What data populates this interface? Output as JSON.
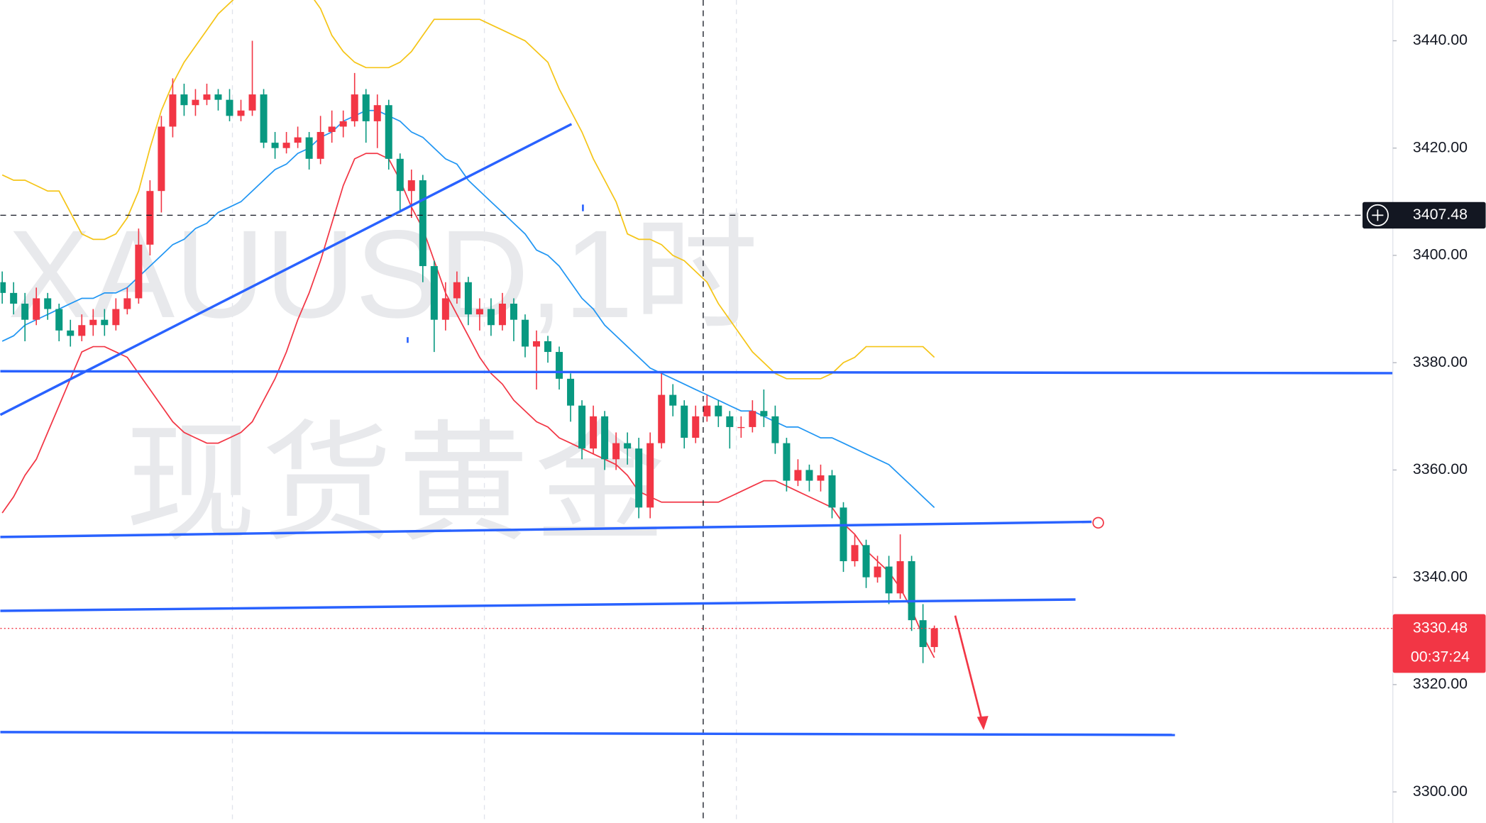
{
  "chart_data": {
    "type": "candlestick",
    "watermark": [
      "XAUUSD,1时",
      "现货黄金"
    ],
    "up_color": "#f23645",
    "down_color": "#089981",
    "open": [
      3395,
      3393,
      3391,
      3388,
      3392,
      3390,
      3386,
      3385,
      3387,
      3388,
      3387,
      3390,
      3392,
      3402,
      3412,
      3424,
      3430,
      3428,
      3429,
      3430,
      3429,
      3426,
      3427,
      3430,
      3421,
      3420,
      3421,
      3422,
      3418,
      3423,
      3424,
      3425,
      3430,
      3425,
      3428,
      3418,
      3412,
      3414,
      3398,
      3388,
      3392,
      3395,
      3389,
      3390,
      3387,
      3391,
      3388,
      3383,
      3384,
      3382,
      3377,
      3372,
      3364,
      3370,
      3362,
      3365,
      3364,
      3353,
      3365,
      3374,
      3372,
      3366,
      3370,
      3372,
      3370,
      3368,
      3368,
      3371,
      3370,
      3365,
      3358,
      3360,
      3358,
      3359,
      3353,
      3343,
      3346,
      3340,
      3342,
      3337,
      3343,
      3332,
      3327
    ],
    "high": [
      3397,
      3395,
      3393,
      3394,
      3393,
      3391,
      3388,
      3389,
      3390,
      3390,
      3392,
      3394,
      3405,
      3414,
      3426,
      3433,
      3432,
      3431,
      3432,
      3431,
      3431,
      3429,
      3440,
      3431,
      3423,
      3423,
      3424,
      3423,
      3426,
      3427,
      3427,
      3434,
      3431,
      3430,
      3429,
      3419,
      3416,
      3415,
      3399,
      3395,
      3397,
      3396,
      3392,
      3392,
      3393,
      3392,
      3389,
      3386,
      3385,
      3383,
      3378,
      3373,
      3372,
      3371,
      3367,
      3367,
      3366,
      3367,
      3378,
      3376,
      3373,
      3372,
      3374,
      3373,
      3371,
      3370,
      3373,
      3375,
      3372,
      3366,
      3362,
      3361,
      3361,
      3360,
      3354,
      3348,
      3347,
      3344,
      3344,
      3348,
      3344,
      3335,
      3331
    ],
    "low": [
      3391,
      3389,
      3384,
      3387,
      3388,
      3384,
      3383,
      3384,
      3385,
      3385,
      3386,
      3389,
      3391,
      3400,
      3408,
      3422,
      3426,
      3426,
      3428,
      3427,
      3425,
      3425,
      3426,
      3420,
      3418,
      3419,
      3420,
      3416,
      3417,
      3421,
      3422,
      3424,
      3421,
      3420,
      3416,
      3408,
      3407,
      3395,
      3382,
      3386,
      3391,
      3387,
      3386,
      3385,
      3386,
      3384,
      3381,
      3375,
      3380,
      3375,
      3369,
      3362,
      3363,
      3360,
      3360,
      3361,
      3351,
      3351,
      3364,
      3370,
      3364,
      3365,
      3369,
      3368,
      3364,
      3366,
      3367,
      3368,
      3363,
      3356,
      3357,
      3356,
      3356,
      3351,
      3341,
      3342,
      3338,
      3339,
      3335,
      3336,
      3330,
      3324,
      3326
    ],
    "close": [
      3393,
      3391,
      3388,
      3392,
      3390,
      3386,
      3385,
      3387,
      3388,
      3387,
      3390,
      3392,
      3402,
      3412,
      3424,
      3430,
      3428,
      3429,
      3430,
      3429,
      3426,
      3427,
      3430,
      3421,
      3420,
      3421,
      3422,
      3418,
      3423,
      3424,
      3425,
      3430,
      3425,
      3428,
      3418,
      3412,
      3414,
      3398,
      3388,
      3392,
      3395,
      3389,
      3390,
      3387,
      3391,
      3388,
      3383,
      3384,
      3382,
      3377,
      3372,
      3364,
      3370,
      3362,
      3365,
      3364,
      3353,
      3365,
      3374,
      3372,
      3366,
      3370,
      3372,
      3370,
      3368,
      3368,
      3371,
      3370,
      3365,
      3358,
      3360,
      3358,
      3359,
      3353,
      3343,
      3346,
      3340,
      3342,
      3337,
      3343,
      3332,
      3327,
      3330.48
    ],
    "series": [
      {
        "color": "#f5c518",
        "values": [
          3415,
          3414,
          3414,
          3413,
          3412,
          3412,
          3408,
          3404,
          3403,
          3403,
          3404,
          3407,
          3412,
          3420,
          3427,
          3432,
          3436,
          3439,
          3442,
          3445,
          3447,
          3449,
          3451,
          3452,
          3452,
          3452,
          3451,
          3449,
          3446,
          3441,
          3438,
          3436,
          3435,
          3435,
          3435,
          3436,
          3438,
          3441,
          3444,
          3444,
          3444,
          3444,
          3444,
          3443,
          3442,
          3441,
          3440,
          3438,
          3436,
          3431,
          3427,
          3423,
          3418,
          3414,
          3410,
          3404,
          3403,
          3403,
          3402,
          3400,
          3399,
          3397,
          3395,
          3391,
          3388,
          3385,
          3382,
          3380,
          3378,
          3377,
          3377,
          3377,
          3377,
          3378,
          3380,
          3381,
          3383,
          3383,
          3383,
          3383,
          3383,
          3383,
          3381
        ]
      },
      {
        "color": "#2196f3",
        "values": [
          3384,
          3385,
          3387,
          3388,
          3389,
          3390,
          3391,
          3392,
          3392,
          3393,
          3393,
          3394,
          3396,
          3398,
          3400,
          3402,
          3403,
          3405,
          3406,
          3408,
          3409,
          3410,
          3412,
          3414,
          3416,
          3417,
          3419,
          3420,
          3422,
          3423,
          3425,
          3426,
          3427,
          3427,
          3426,
          3425,
          3423,
          3422,
          3420,
          3418,
          3417,
          3414,
          3412,
          3410,
          3408,
          3406,
          3404,
          3401,
          3400,
          3398,
          3395,
          3392,
          3390,
          3387,
          3385,
          3383,
          3381,
          3379,
          3378,
          3377,
          3376,
          3375,
          3374,
          3373,
          3372,
          3371,
          3371,
          3370,
          3369,
          3368,
          3368,
          3367,
          3366,
          3366,
          3365,
          3364,
          3363,
          3362,
          3361,
          3359,
          3357,
          3355,
          3353
        ]
      },
      {
        "color": "#f23645",
        "values": [
          3352,
          3355,
          3359,
          3362,
          3367,
          3372,
          3377,
          3382,
          3383,
          3383,
          3382,
          3381,
          3378,
          3375,
          3372,
          3369,
          3367,
          3366,
          3365,
          3365,
          3366,
          3367,
          3369,
          3373,
          3377,
          3382,
          3388,
          3393,
          3399,
          3406,
          3413,
          3418,
          3419,
          3419,
          3418,
          3414,
          3409,
          3405,
          3399,
          3393,
          3389,
          3385,
          3381,
          3378,
          3376,
          3373,
          3371,
          3369,
          3368,
          3366,
          3365,
          3364,
          3363,
          3362,
          3361,
          3359,
          3356,
          3355,
          3354,
          3354,
          3354,
          3354,
          3354,
          3354,
          3355,
          3356,
          3357,
          3358,
          3358,
          3357,
          3356,
          3355,
          3354,
          3353,
          3350,
          3348,
          3345,
          3343,
          3341,
          3338,
          3334,
          3329,
          3325
        ]
      }
    ],
    "ylim": [
      3294.2,
      3447.6
    ],
    "yticks": [
      {
        "value": 3300,
        "label": "3300.00"
      },
      {
        "value": 3320,
        "label": "3320.00"
      },
      {
        "value": 3340,
        "label": "3340.00"
      },
      {
        "value": 3360,
        "label": "3360.00"
      },
      {
        "value": 3380,
        "label": "3380.00"
      },
      {
        "value": 3400,
        "label": "3400.00"
      },
      {
        "value": 3420,
        "label": "3420.00"
      },
      {
        "value": 3440,
        "label": "3440.00"
      }
    ],
    "crosshair_price": 3407.48,
    "last_price": 3330.48,
    "countdown": "00:37:24"
  }
}
